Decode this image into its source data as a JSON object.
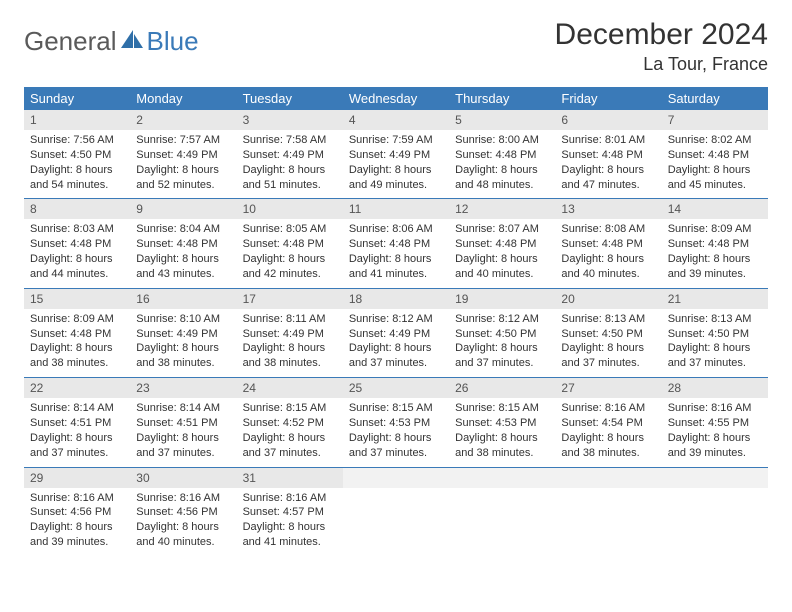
{
  "brand": {
    "text1": "General",
    "text2": "Blue"
  },
  "title": "December 2024",
  "location": "La Tour, France",
  "header_bg": "#3a7ab8",
  "daynum_bg": "#e8e8e8",
  "border_color": "#3a7ab8",
  "weekdays": [
    "Sunday",
    "Monday",
    "Tuesday",
    "Wednesday",
    "Thursday",
    "Friday",
    "Saturday"
  ],
  "weeks": [
    [
      {
        "n": "1",
        "sr": "7:56 AM",
        "ss": "4:50 PM",
        "dl": "8 hours and 54 minutes."
      },
      {
        "n": "2",
        "sr": "7:57 AM",
        "ss": "4:49 PM",
        "dl": "8 hours and 52 minutes."
      },
      {
        "n": "3",
        "sr": "7:58 AM",
        "ss": "4:49 PM",
        "dl": "8 hours and 51 minutes."
      },
      {
        "n": "4",
        "sr": "7:59 AM",
        "ss": "4:49 PM",
        "dl": "8 hours and 49 minutes."
      },
      {
        "n": "5",
        "sr": "8:00 AM",
        "ss": "4:48 PM",
        "dl": "8 hours and 48 minutes."
      },
      {
        "n": "6",
        "sr": "8:01 AM",
        "ss": "4:48 PM",
        "dl": "8 hours and 47 minutes."
      },
      {
        "n": "7",
        "sr": "8:02 AM",
        "ss": "4:48 PM",
        "dl": "8 hours and 45 minutes."
      }
    ],
    [
      {
        "n": "8",
        "sr": "8:03 AM",
        "ss": "4:48 PM",
        "dl": "8 hours and 44 minutes."
      },
      {
        "n": "9",
        "sr": "8:04 AM",
        "ss": "4:48 PM",
        "dl": "8 hours and 43 minutes."
      },
      {
        "n": "10",
        "sr": "8:05 AM",
        "ss": "4:48 PM",
        "dl": "8 hours and 42 minutes."
      },
      {
        "n": "11",
        "sr": "8:06 AM",
        "ss": "4:48 PM",
        "dl": "8 hours and 41 minutes."
      },
      {
        "n": "12",
        "sr": "8:07 AM",
        "ss": "4:48 PM",
        "dl": "8 hours and 40 minutes."
      },
      {
        "n": "13",
        "sr": "8:08 AM",
        "ss": "4:48 PM",
        "dl": "8 hours and 40 minutes."
      },
      {
        "n": "14",
        "sr": "8:09 AM",
        "ss": "4:48 PM",
        "dl": "8 hours and 39 minutes."
      }
    ],
    [
      {
        "n": "15",
        "sr": "8:09 AM",
        "ss": "4:48 PM",
        "dl": "8 hours and 38 minutes."
      },
      {
        "n": "16",
        "sr": "8:10 AM",
        "ss": "4:49 PM",
        "dl": "8 hours and 38 minutes."
      },
      {
        "n": "17",
        "sr": "8:11 AM",
        "ss": "4:49 PM",
        "dl": "8 hours and 38 minutes."
      },
      {
        "n": "18",
        "sr": "8:12 AM",
        "ss": "4:49 PM",
        "dl": "8 hours and 37 minutes."
      },
      {
        "n": "19",
        "sr": "8:12 AM",
        "ss": "4:50 PM",
        "dl": "8 hours and 37 minutes."
      },
      {
        "n": "20",
        "sr": "8:13 AM",
        "ss": "4:50 PM",
        "dl": "8 hours and 37 minutes."
      },
      {
        "n": "21",
        "sr": "8:13 AM",
        "ss": "4:50 PM",
        "dl": "8 hours and 37 minutes."
      }
    ],
    [
      {
        "n": "22",
        "sr": "8:14 AM",
        "ss": "4:51 PM",
        "dl": "8 hours and 37 minutes."
      },
      {
        "n": "23",
        "sr": "8:14 AM",
        "ss": "4:51 PM",
        "dl": "8 hours and 37 minutes."
      },
      {
        "n": "24",
        "sr": "8:15 AM",
        "ss": "4:52 PM",
        "dl": "8 hours and 37 minutes."
      },
      {
        "n": "25",
        "sr": "8:15 AM",
        "ss": "4:53 PM",
        "dl": "8 hours and 37 minutes."
      },
      {
        "n": "26",
        "sr": "8:15 AM",
        "ss": "4:53 PM",
        "dl": "8 hours and 38 minutes."
      },
      {
        "n": "27",
        "sr": "8:16 AM",
        "ss": "4:54 PM",
        "dl": "8 hours and 38 minutes."
      },
      {
        "n": "28",
        "sr": "8:16 AM",
        "ss": "4:55 PM",
        "dl": "8 hours and 39 minutes."
      }
    ],
    [
      {
        "n": "29",
        "sr": "8:16 AM",
        "ss": "4:56 PM",
        "dl": "8 hours and 39 minutes."
      },
      {
        "n": "30",
        "sr": "8:16 AM",
        "ss": "4:56 PM",
        "dl": "8 hours and 40 minutes."
      },
      {
        "n": "31",
        "sr": "8:16 AM",
        "ss": "4:57 PM",
        "dl": "8 hours and 41 minutes."
      },
      null,
      null,
      null,
      null
    ]
  ],
  "labels": {
    "sunrise": "Sunrise:",
    "sunset": "Sunset:",
    "daylight": "Daylight:"
  }
}
